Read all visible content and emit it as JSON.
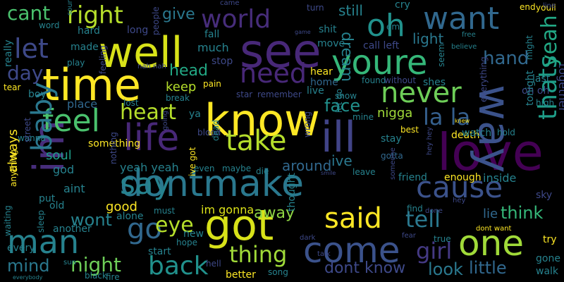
{
  "wordcloud": {
    "background": "#000000",
    "words": [
      {
        "text": "love",
        "color": "#440154"
      },
      {
        "text": "way",
        "color": "#3b528b"
      },
      {
        "text": "know",
        "color": "#fde725"
      },
      {
        "text": "see",
        "color": "#482878"
      },
      {
        "text": "time",
        "color": "#fde725"
      },
      {
        "text": "well",
        "color": "#d8e219"
      },
      {
        "text": "youre",
        "color": "#35b779"
      },
      {
        "text": "dontmake",
        "color": "#2a788e"
      },
      {
        "text": "got",
        "color": "#d8e219"
      },
      {
        "text": "im",
        "color": "#472d7b"
      },
      {
        "text": "life",
        "color": "#482878"
      },
      {
        "text": "come",
        "color": "#3b528b"
      },
      {
        "text": "one",
        "color": "#a0da39"
      },
      {
        "text": "man",
        "color": "#26828e"
      },
      {
        "text": "ill",
        "color": "#414487"
      },
      {
        "text": "go",
        "color": "#31688e"
      },
      {
        "text": "say",
        "color": "#26828e"
      },
      {
        "text": "cause",
        "color": "#3b528b"
      },
      {
        "text": "world",
        "color": "#472d7b"
      },
      {
        "text": "oh",
        "color": "#21918c"
      },
      {
        "text": "want",
        "color": "#31688e"
      },
      {
        "text": "never",
        "color": "#6ece58"
      },
      {
        "text": "need",
        "color": "#482878"
      },
      {
        "text": "feel",
        "color": "#4ac16d"
      },
      {
        "text": "take",
        "color": "#b5de2b"
      },
      {
        "text": "said",
        "color": "#fde725"
      },
      {
        "text": "let",
        "color": "#3e4989"
      },
      {
        "text": "right",
        "color": "#b5de2b"
      },
      {
        "text": "baby",
        "color": "#2a788e"
      },
      {
        "text": "thats",
        "color": "#1f9e89"
      },
      {
        "text": "back",
        "color": "#21918c"
      },
      {
        "text": "thing",
        "color": "#a0da39"
      },
      {
        "text": "heart",
        "color": "#b5de2b"
      },
      {
        "text": "la la",
        "color": "#355f8d"
      },
      {
        "text": "tell",
        "color": "#2a788e"
      },
      {
        "text": "eye",
        "color": "#b5de2b"
      },
      {
        "text": "girl",
        "color": "#443983"
      },
      {
        "text": "yeah",
        "color": "#22a884"
      },
      {
        "text": "hand",
        "color": "#31688e"
      },
      {
        "text": "day",
        "color": "#3e4989"
      },
      {
        "text": "cant",
        "color": "#4ac16d"
      },
      {
        "text": "night",
        "color": "#6ece58"
      },
      {
        "text": "wont",
        "color": "#26828e"
      },
      {
        "text": "mind",
        "color": "#2a788e"
      },
      {
        "text": "little",
        "color": "#31688e"
      },
      {
        "text": "dont know",
        "color": "#3e4989"
      },
      {
        "text": "look",
        "color": "#2a788e"
      },
      {
        "text": "think",
        "color": "#35b779"
      },
      {
        "text": "head",
        "color": "#22a884"
      },
      {
        "text": "give",
        "color": "#2a788e"
      },
      {
        "text": "face",
        "color": "#21918c"
      },
      {
        "text": "away",
        "color": "#8fd744"
      },
      {
        "text": "dream",
        "color": "#26828e"
      },
      {
        "text": "light",
        "color": "#2a788e"
      },
      {
        "text": "still",
        "color": "#26828e"
      },
      {
        "text": "around",
        "color": "#31688e"
      },
      {
        "text": "ive",
        "color": "#2a788e"
      },
      {
        "text": "keep",
        "color": "#b5de2b"
      },
      {
        "text": "good",
        "color": "#fde725"
      },
      {
        "text": "soul",
        "color": "#1f9e89"
      },
      {
        "text": "always",
        "color": "#fde725"
      },
      {
        "text": "im gonna",
        "color": "#dce319"
      },
      {
        "text": "lie",
        "color": "#31688e"
      },
      {
        "text": "yeah yeah",
        "color": "#26828e"
      },
      {
        "text": "nigga",
        "color": "#a0da39"
      },
      {
        "text": "together",
        "color": "#3e4989"
      },
      {
        "text": "aint",
        "color": "#26828e"
      },
      {
        "text": "god",
        "color": "#26828e"
      },
      {
        "text": "place",
        "color": "#31688e"
      },
      {
        "text": "made",
        "color": "#26828e"
      },
      {
        "text": "much",
        "color": "#26828e"
      },
      {
        "text": "hard",
        "color": "#26828e"
      },
      {
        "text": "long",
        "color": "#3e4989"
      },
      {
        "text": "fall",
        "color": "#26828e"
      },
      {
        "text": "stop",
        "color": "#3e4989"
      },
      {
        "text": "hear",
        "color": "#fde725"
      },
      {
        "text": "home",
        "color": "#31688e"
      },
      {
        "text": "live",
        "color": "#26828e"
      },
      {
        "text": "show",
        "color": "#26828e"
      },
      {
        "text": "shes",
        "color": "#26828e"
      },
      {
        "text": "move",
        "color": "#26828e"
      },
      {
        "text": "call left",
        "color": "#3e4989"
      },
      {
        "text": "mine",
        "color": "#26828e"
      },
      {
        "text": "stay",
        "color": "#26828e"
      },
      {
        "text": "gotta",
        "color": "#31688e"
      },
      {
        "text": "leave",
        "color": "#26828e"
      },
      {
        "text": "friend",
        "color": "#26828e"
      },
      {
        "text": "enough",
        "color": "#fde725"
      },
      {
        "text": "inside",
        "color": "#26828e"
      },
      {
        "text": "sky",
        "color": "#3e4989"
      },
      {
        "text": "try",
        "color": "#fde725"
      },
      {
        "text": "gone",
        "color": "#26828e"
      },
      {
        "text": "walk",
        "color": "#26828e"
      },
      {
        "text": "better",
        "color": "#fde725"
      },
      {
        "text": "song",
        "color": "#26828e"
      },
      {
        "text": "start",
        "color": "#26828e"
      },
      {
        "text": "hope",
        "color": "#26828e"
      },
      {
        "text": "new",
        "color": "#26828e"
      },
      {
        "text": "must",
        "color": "#26828e"
      },
      {
        "text": "alone",
        "color": "#26828e"
      },
      {
        "text": "another",
        "color": "#26828e"
      },
      {
        "text": "every",
        "color": "#26828e"
      },
      {
        "text": "old",
        "color": "#26828e"
      },
      {
        "text": "put",
        "color": "#26828e"
      },
      {
        "text": "something",
        "color": "#fde725"
      },
      {
        "text": "boy",
        "color": "#26828e"
      },
      {
        "text": "tear",
        "color": "#fde725"
      },
      {
        "text": "really",
        "color": "#26828e"
      },
      {
        "text": "wanna",
        "color": "#26828e"
      },
      {
        "text": "word",
        "color": "#26828e"
      },
      {
        "text": "play",
        "color": "#26828e"
      },
      {
        "text": "people",
        "color": "#3e4989"
      },
      {
        "text": "nah nah",
        "color": "#3e4989"
      },
      {
        "text": "pain",
        "color": "#fde725"
      },
      {
        "text": "star",
        "color": "#3e4989"
      },
      {
        "text": "remember",
        "color": "#3e4989"
      },
      {
        "text": "lost",
        "color": "#26828e"
      },
      {
        "text": "break",
        "color": "#26828e"
      },
      {
        "text": "ya",
        "color": "#26828e"
      },
      {
        "text": "blood",
        "color": "#3e4989"
      },
      {
        "text": "dead",
        "color": "#26828e"
      },
      {
        "text": "maybe",
        "color": "#26828e"
      },
      {
        "text": "die",
        "color": "#26828e"
      },
      {
        "text": "even",
        "color": "#26828e"
      },
      {
        "text": "death",
        "color": "#fde725"
      },
      {
        "text": "watch",
        "color": "#26828e"
      },
      {
        "text": "hold",
        "color": "#26828e"
      },
      {
        "text": "best",
        "color": "#fde725"
      },
      {
        "text": "free",
        "color": "#26828e"
      },
      {
        "text": "believe",
        "color": "#26828e"
      },
      {
        "text": "might",
        "color": "#26828e"
      },
      {
        "text": "youll",
        "color": "#fde725"
      },
      {
        "text": "end",
        "color": "#fde725"
      },
      {
        "text": "line",
        "color": "#3e4989"
      },
      {
        "text": "last",
        "color": "#26828e"
      },
      {
        "text": "oh oh",
        "color": "#3e4989"
      },
      {
        "text": "high",
        "color": "#26828e"
      },
      {
        "text": "tonight",
        "color": "#26828e"
      },
      {
        "text": "everything",
        "color": "#3e4989"
      },
      {
        "text": "seem",
        "color": "#26828e"
      },
      {
        "text": "found",
        "color": "#26828e"
      },
      {
        "text": "without",
        "color": "#3e4989"
      },
      {
        "text": "cry",
        "color": "#26828e"
      },
      {
        "text": "turn",
        "color": "#3e4989"
      },
      {
        "text": "shit",
        "color": "#26828e"
      },
      {
        "text": "em",
        "color": "#26828e"
      },
      {
        "text": "came",
        "color": "#3e4989"
      },
      {
        "text": "sound",
        "color": "#26828e"
      },
      {
        "text": "game",
        "color": "#3e4989"
      },
      {
        "text": "street",
        "color": "#3e4989"
      },
      {
        "text": "waiting",
        "color": "#26828e"
      },
      {
        "text": "anything",
        "color": "#fde725"
      },
      {
        "text": "sleep",
        "color": "#26828e"
      },
      {
        "text": "sun",
        "color": "#26828e"
      },
      {
        "text": "black",
        "color": "#26828e"
      },
      {
        "text": "fire",
        "color": "#26828e"
      },
      {
        "text": "everybody",
        "color": "#26828e"
      },
      {
        "text": "hell",
        "color": "#3e4989"
      },
      {
        "text": "dark",
        "color": "#3e4989"
      },
      {
        "text": "talk",
        "color": "#3e4989"
      },
      {
        "text": "wrong",
        "color": "#3e4989"
      },
      {
        "text": "smile",
        "color": "#3e4989"
      },
      {
        "text": "someone",
        "color": "#3e4989"
      },
      {
        "text": "fear",
        "color": "#3e4989"
      },
      {
        "text": "true",
        "color": "#26828e"
      },
      {
        "text": "dont want",
        "color": "#fde725"
      },
      {
        "text": "find",
        "color": "#26828e"
      },
      {
        "text": "done",
        "color": "#3e4989"
      },
      {
        "text": "thought",
        "color": "#26828e"
      },
      {
        "text": "hey hey",
        "color": "#3e4989"
      },
      {
        "text": "knew",
        "color": "#fde725"
      },
      {
        "text": "nothing",
        "color": "#3e4989"
      },
      {
        "text": "feeling",
        "color": "#3e4989"
      },
      {
        "text": "going",
        "color": "#3e4989"
      },
      {
        "text": "let go",
        "color": "#26828e"
      },
      {
        "text": "ive got",
        "color": "#fde725"
      },
      {
        "text": "hey",
        "color": "#3e4989"
      }
    ]
  }
}
